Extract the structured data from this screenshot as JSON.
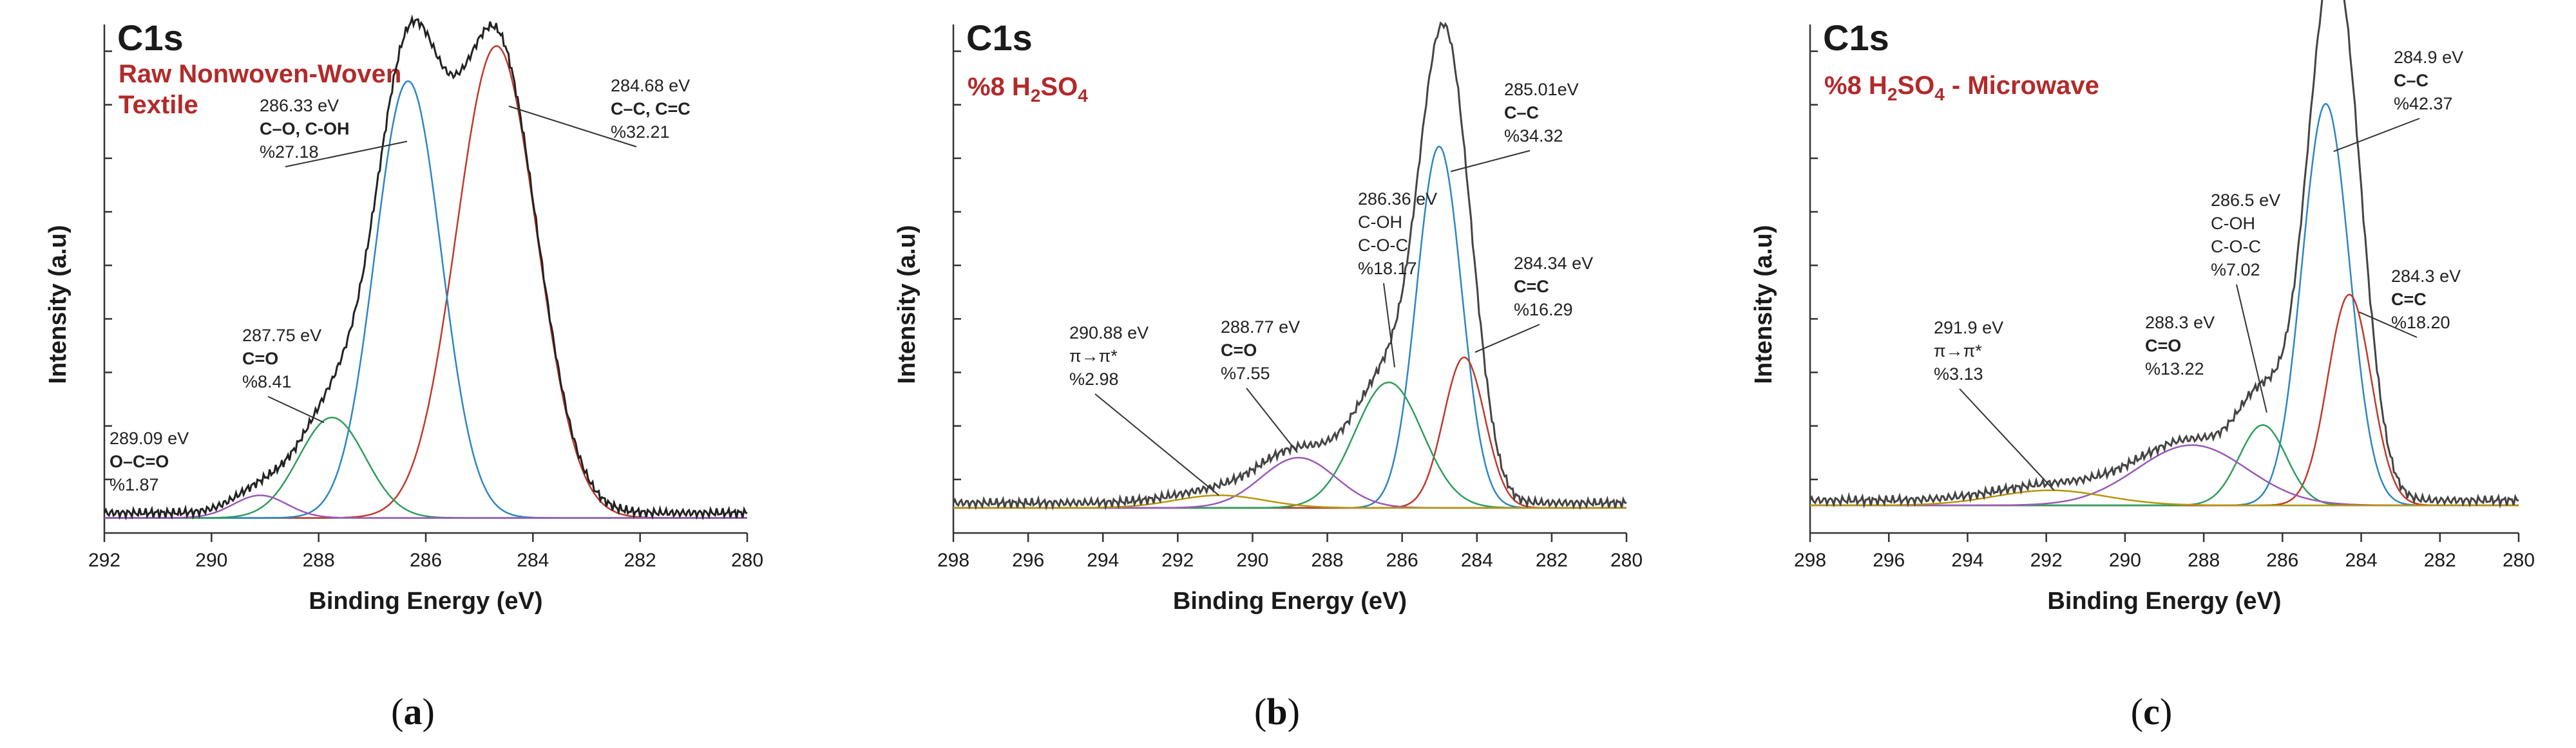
{
  "chart_data": [
    {
      "type": "line",
      "title": "C1s",
      "subtitle_lines": [
        "Raw Nonwoven-Woven",
        "Textile"
      ],
      "xlabel": "Binding Energy (eV)",
      "ylabel": "Intensity (a.u)",
      "xlim": [
        292,
        280
      ],
      "xticks": [
        292,
        290,
        288,
        286,
        284,
        282,
        280
      ],
      "caption": "a",
      "baseline": 0.03,
      "envelope_color": "#222222",
      "peaks": [
        {
          "center": 284.68,
          "height": 0.94,
          "width": 0.75,
          "color": "#c0392b"
        },
        {
          "center": 286.33,
          "height": 0.87,
          "width": 0.62,
          "color": "#2e86c1"
        },
        {
          "center": 287.75,
          "height": 0.2,
          "width": 0.62,
          "color": "#2e9e5b"
        },
        {
          "center": 289.09,
          "height": 0.045,
          "width": 0.5,
          "color": "#9b59b6"
        }
      ],
      "annotations": [
        {
          "lines": [
            "284.68 eV",
            "C–C, C=C",
            "%32.21"
          ],
          "bold": [
            1
          ],
          "target": [
            284.45,
            0.85
          ]
        },
        {
          "lines": [
            "286.33 eV",
            "C–O, C-OH",
            "%27.18"
          ],
          "bold": [
            1
          ],
          "target": [
            286.35,
            0.78
          ]
        },
        {
          "lines": [
            "287.75 eV",
            "C=O",
            "%8.41"
          ],
          "bold": [
            1
          ],
          "target": [
            287.9,
            0.22
          ]
        },
        {
          "lines": [
            "289.09 eV",
            "O–C=O",
            "%1.87"
          ],
          "bold": [
            1
          ],
          "target": null
        }
      ]
    },
    {
      "type": "line",
      "title": "C1s",
      "subtitle_lines": [
        "%8 H2SO4"
      ],
      "xlabel": "Binding Energy (eV)",
      "ylabel": "Intensity (a.u)",
      "xlim": [
        298,
        280
      ],
      "xticks": [
        298,
        296,
        294,
        292,
        290,
        288,
        286,
        284,
        282,
        280
      ],
      "caption": "b",
      "baseline": 0.05,
      "envelope_color": "#444444",
      "peaks": [
        {
          "center": 285.01,
          "height": 0.72,
          "width": 0.6,
          "color": "#2e86c1"
        },
        {
          "center": 284.34,
          "height": 0.3,
          "width": 0.55,
          "color": "#c0392b"
        },
        {
          "center": 286.36,
          "height": 0.25,
          "width": 0.9,
          "color": "#2e9e5b"
        },
        {
          "center": 288.77,
          "height": 0.1,
          "width": 1.0,
          "color": "#9b59b6"
        },
        {
          "center": 290.88,
          "height": 0.025,
          "width": 1.2,
          "color": "#b7950b"
        }
      ],
      "annotations": [
        {
          "lines": [
            "285.01eV",
            "C–C",
            "%34.32"
          ],
          "bold": [
            1
          ],
          "target": [
            284.7,
            0.72
          ]
        },
        {
          "lines": [
            "286.36 eV",
            "C-OH",
            "C-O-C",
            "%18.17"
          ],
          "bold": [],
          "target": [
            286.2,
            0.33
          ]
        },
        {
          "lines": [
            "284.34 eV",
            "C=C",
            "%16.29"
          ],
          "bold": [
            1
          ],
          "target": [
            284.05,
            0.36
          ]
        },
        {
          "lines": [
            "288.77 eV",
            "C=O",
            "%7.55"
          ],
          "bold": [
            1
          ],
          "target": [
            288.8,
            0.16
          ]
        },
        {
          "lines": [
            "290.88 eV",
            "π→π*",
            "%2.98"
          ],
          "bold": [],
          "target": [
            290.9,
            0.075
          ]
        }
      ]
    },
    {
      "type": "line",
      "title": "C1s",
      "subtitle_lines": [
        "%8 H2SO4  - Microwave"
      ],
      "xlabel": "Binding Energy (eV)",
      "ylabel": "Intensity (a.u)",
      "xlim": [
        298,
        280
      ],
      "xticks": [
        298,
        296,
        294,
        292,
        290,
        288,
        286,
        284,
        282,
        280
      ],
      "caption": "c",
      "baseline": 0.055,
      "envelope_color": "#444444",
      "peaks": [
        {
          "center": 284.9,
          "height": 0.8,
          "width": 0.6,
          "color": "#2e86c1"
        },
        {
          "center": 284.3,
          "height": 0.42,
          "width": 0.55,
          "color": "#c0392b"
        },
        {
          "center": 286.5,
          "height": 0.16,
          "width": 0.6,
          "color": "#2e9e5b"
        },
        {
          "center": 288.3,
          "height": 0.12,
          "width": 1.4,
          "color": "#9b59b6"
        },
        {
          "center": 291.9,
          "height": 0.03,
          "width": 1.4,
          "color": "#b7950b"
        }
      ],
      "annotations": [
        {
          "lines": [
            "284.9 eV",
            "C–C",
            "%42.37"
          ],
          "bold": [
            1
          ],
          "target": [
            284.7,
            0.76
          ]
        },
        {
          "lines": [
            "286.5 eV",
            "C-OH",
            "C-O-C",
            "%7.02"
          ],
          "bold": [],
          "target": [
            286.4,
            0.24
          ]
        },
        {
          "lines": [
            "284.3 eV",
            "C=C",
            "%18.20"
          ],
          "bold": [
            1
          ],
          "target": [
            284.05,
            0.44
          ]
        },
        {
          "lines": [
            "288.3 eV",
            "C=O",
            "%13.22"
          ],
          "bold": [
            1
          ],
          "target": null
        },
        {
          "lines": [
            "291.9 eV",
            "π→π*",
            "%3.13"
          ],
          "bold": [],
          "target": [
            291.8,
            0.085
          ]
        }
      ]
    }
  ]
}
